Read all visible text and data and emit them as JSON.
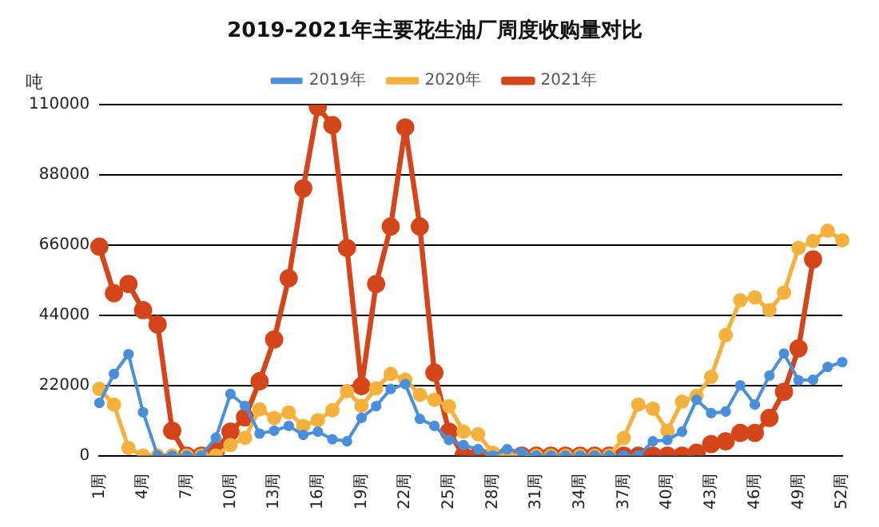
{
  "chart_data": {
    "type": "line",
    "title": "2019-2021年主要花生油厂周度收购量对比",
    "ylabel": "吨",
    "categories": [
      "1周",
      null,
      null,
      "4周",
      null,
      null,
      "7周",
      null,
      null,
      "10周",
      null,
      null,
      "13周",
      null,
      null,
      "16周",
      null,
      null,
      "19周",
      null,
      null,
      "22周",
      null,
      null,
      "25周",
      null,
      null,
      "28周",
      null,
      null,
      "31周",
      null,
      null,
      "34周",
      null,
      null,
      "37周",
      null,
      null,
      "40周",
      null,
      null,
      "43周",
      null,
      null,
      "46周",
      null,
      null,
      "49周",
      null,
      null,
      "52周"
    ],
    "series": [
      {
        "name": "2019年",
        "color": "#4a8fdb",
        "values": [
          16500,
          25600,
          31800,
          13600,
          0,
          0,
          0,
          0,
          5600,
          19300,
          15600,
          6900,
          7800,
          9300,
          6500,
          7500,
          5100,
          4500,
          11800,
          15500,
          20900,
          22400,
          11500,
          9300,
          4900,
          3300,
          2000,
          0,
          2000,
          900,
          0,
          0,
          0,
          0,
          0,
          0,
          0,
          0,
          4500,
          4900,
          7500,
          17500,
          13300,
          13800,
          22000,
          16000,
          25100,
          32000,
          23600,
          23800,
          27800,
          29300
        ]
      },
      {
        "name": "2020年",
        "color": "#f5b13d",
        "values": [
          20900,
          16000,
          2400,
          0,
          0,
          0,
          0,
          0,
          0,
          3300,
          5600,
          14500,
          11800,
          13500,
          9300,
          11100,
          14200,
          20200,
          15600,
          21100,
          25600,
          23800,
          19100,
          17500,
          15500,
          7500,
          6700,
          900,
          0,
          0,
          0,
          0,
          0,
          0,
          0,
          0,
          5500,
          16000,
          14700,
          7800,
          16900,
          18700,
          24700,
          37800,
          48700,
          49600,
          45600,
          51100,
          65100,
          67300,
          70500,
          67500
        ]
      },
      {
        "name": "2021年",
        "color": "#d4461a",
        "values": [
          65500,
          50900,
          53800,
          45600,
          41100,
          7800,
          0,
          0,
          1500,
          7500,
          12000,
          23300,
          36400,
          55600,
          83800,
          109300,
          103600,
          65100,
          21800,
          53800,
          71800,
          102900,
          71800,
          26000,
          7500,
          0,
          0,
          0,
          0,
          0,
          0,
          0,
          0,
          0,
          0,
          0,
          0,
          0,
          0,
          0,
          0,
          900,
          3600,
          4500,
          7100,
          7100,
          11800,
          20000,
          33600,
          61500,
          null,
          null
        ]
      }
    ],
    "ylim": [
      0,
      110000
    ],
    "yticks": [
      0,
      22000,
      44000,
      66000,
      88000,
      110000
    ],
    "grid": "y",
    "legend": "top",
    "marker": "circle",
    "line_style": "solid"
  }
}
